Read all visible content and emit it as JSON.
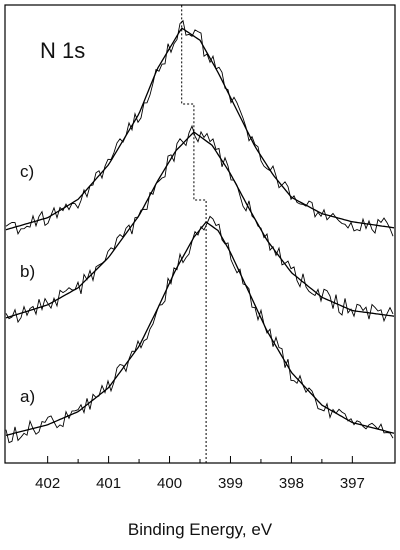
{
  "chart_data": {
    "type": "line",
    "title": "N 1s",
    "xlabel": "Binding Energy, eV",
    "ylabel": "",
    "x_reversed": true,
    "xlim": [
      402.7,
      396.3
    ],
    "x_ticks": [
      "402",
      "401",
      "400",
      "399",
      "398",
      "397"
    ],
    "x_tick_values": [
      402,
      401,
      400,
      399,
      398,
      397
    ],
    "grid": false,
    "legend": "none",
    "series": [
      {
        "name": "a)",
        "peak_ev": 399.4,
        "fit": {
          "x": [
            402.7,
            402.0,
            401.5,
            401.0,
            400.5,
            400.2,
            399.9,
            399.6,
            399.4,
            399.2,
            399.0,
            398.7,
            398.4,
            398.0,
            397.5,
            397.0,
            396.3
          ],
          "y": [
            0.02,
            0.07,
            0.13,
            0.24,
            0.43,
            0.6,
            0.78,
            0.93,
            1.0,
            0.96,
            0.86,
            0.68,
            0.5,
            0.31,
            0.16,
            0.08,
            0.03
          ]
        }
      },
      {
        "name": "b)",
        "peak_ev": 399.6,
        "fit": {
          "x": [
            402.7,
            402.0,
            401.5,
            401.0,
            400.5,
            400.2,
            399.9,
            399.6,
            399.3,
            399.0,
            398.7,
            398.4,
            398.0,
            397.5,
            397.0,
            396.3
          ],
          "y": [
            0.02,
            0.09,
            0.18,
            0.34,
            0.56,
            0.74,
            0.9,
            1.0,
            0.93,
            0.78,
            0.6,
            0.43,
            0.26,
            0.13,
            0.06,
            0.03
          ]
        }
      },
      {
        "name": "c)",
        "peak_ev": 399.8,
        "fit": {
          "x": [
            402.7,
            402.0,
            401.5,
            401.0,
            400.5,
            400.2,
            399.8,
            399.5,
            399.2,
            398.9,
            398.6,
            398.3,
            398.0,
            397.5,
            397.0,
            396.3
          ],
          "y": [
            0.01,
            0.07,
            0.16,
            0.33,
            0.58,
            0.8,
            1.0,
            0.94,
            0.78,
            0.6,
            0.42,
            0.28,
            0.17,
            0.09,
            0.05,
            0.02
          ]
        }
      }
    ]
  }
}
